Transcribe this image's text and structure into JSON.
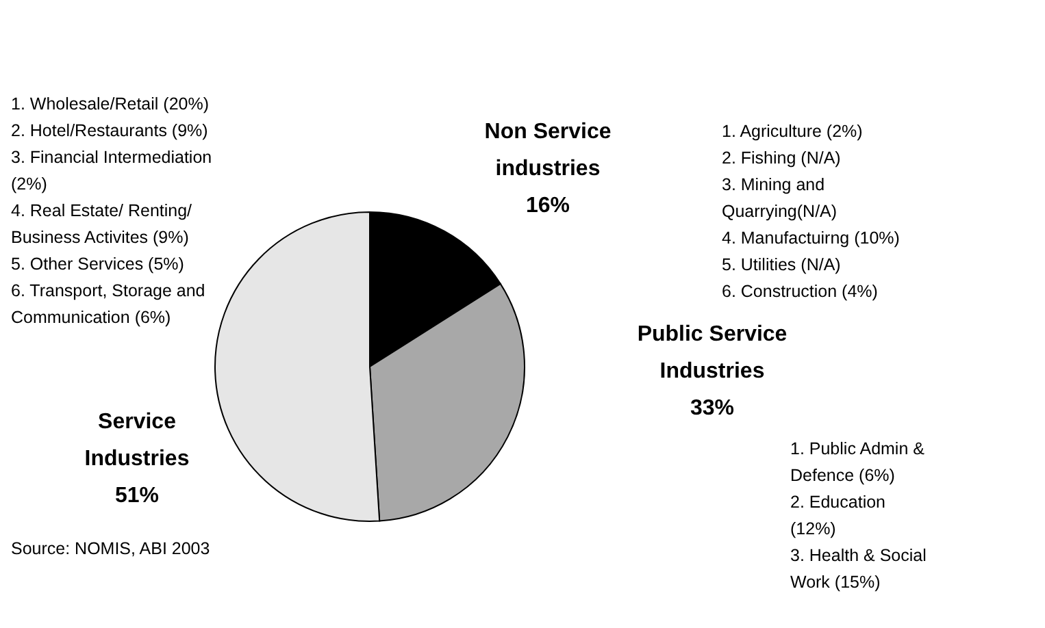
{
  "chart_data": {
    "type": "pie",
    "categories": [
      "Non Service industries",
      "Public Service Industries",
      "Service Industries"
    ],
    "values": [
      16,
      33,
      51
    ],
    "colors": [
      "#000000",
      "#a8a8a8",
      "#e6e6e6"
    ],
    "value_labels": [
      "16%",
      "33%",
      "51%"
    ],
    "annotations": [
      "1. Wholesale/Retail (20%)\n2. Hotel/Restaurants (9%)\n3. Financial Intermediation\n(2%)\n4. Real Estate/ Renting/\nBusiness Activites (9%)\n5. Other Services (5%)\n6. Transport, Storage and\nCommunication (6%)",
      "1. Agriculture (2%)\n2. Fishing (N/A)\n3. Mining and\nQuarrying(N/A)\n4. Manufactuirng (10%)\n5. Utilities (N/A)\n6. Construction (4%)",
      "1. Public Admin  &\nDefence (6%)\n2. Education\n(12%)\n3. Health & Social\nWork (15%)",
      "Source: NOMIS, ABI 2003"
    ]
  }
}
